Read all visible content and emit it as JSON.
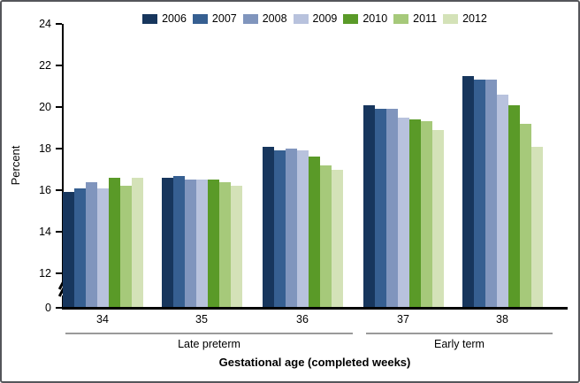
{
  "chart_data": {
    "type": "bar",
    "ylabel": "Percent",
    "xlabel": "Gestational age (completed weeks)",
    "categories": [
      "34",
      "35",
      "36",
      "37",
      "38"
    ],
    "category_groups": [
      {
        "label": "Late preterm",
        "span": [
          0,
          2
        ]
      },
      {
        "label": "Early term",
        "span": [
          3,
          4
        ]
      }
    ],
    "series": [
      {
        "name": "2006",
        "color": "#17365D",
        "values": [
          15.9,
          16.6,
          18.1,
          20.1,
          21.5
        ]
      },
      {
        "name": "2007",
        "color": "#365F91",
        "values": [
          16.1,
          16.7,
          17.9,
          19.9,
          21.3
        ]
      },
      {
        "name": "2008",
        "color": "#8095BD",
        "values": [
          16.4,
          16.5,
          18.0,
          19.9,
          21.3
        ]
      },
      {
        "name": "2009",
        "color": "#B8C2DD",
        "values": [
          16.1,
          16.5,
          17.9,
          19.5,
          20.6
        ]
      },
      {
        "name": "2010",
        "color": "#5A9A28",
        "values": [
          16.6,
          16.5,
          17.6,
          19.4,
          20.1
        ]
      },
      {
        "name": "2011",
        "color": "#A6C97A",
        "values": [
          16.2,
          16.4,
          17.2,
          19.3,
          19.2
        ]
      },
      {
        "name": "2012",
        "color": "#D4E2B8",
        "values": [
          16.6,
          16.2,
          17.0,
          18.9,
          18.1
        ]
      }
    ],
    "y_ticks": [
      24,
      22,
      20,
      18,
      16,
      14,
      12,
      0
    ],
    "ylim_display": [
      12,
      24
    ],
    "axis_break": true,
    "grid": false,
    "legend_position": "top"
  }
}
